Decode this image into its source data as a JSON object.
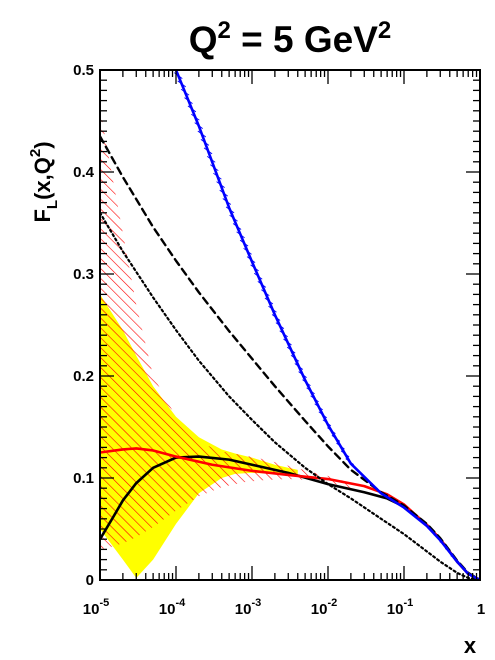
{
  "chart_data": {
    "type": "line",
    "title": {
      "base": "Q",
      "sup": "2",
      "mid": " = 5 GeV",
      "sup2": "2"
    },
    "xlabel": "x",
    "ylabel": {
      "a": "F",
      "sub": "L",
      "b": "(x,Q",
      "sup": "2",
      "c": ")"
    },
    "xscale": "log",
    "xlim": [
      1e-05,
      1
    ],
    "ylim": [
      0,
      0.5
    ],
    "x_ticks": [
      {
        "value": 1e-05,
        "base": "10",
        "exp": "-5"
      },
      {
        "value": 0.0001,
        "base": "10",
        "exp": "-4"
      },
      {
        "value": 0.001,
        "base": "10",
        "exp": "-3"
      },
      {
        "value": 0.01,
        "base": "10",
        "exp": "-2"
      },
      {
        "value": 0.1,
        "base": "10",
        "exp": "-1"
      },
      {
        "value": 1,
        "base": "1",
        "exp": ""
      }
    ],
    "y_ticks": [
      {
        "value": 0,
        "label": "0"
      },
      {
        "value": 0.1,
        "label": "0.1"
      },
      {
        "value": 0.2,
        "label": "0.2"
      },
      {
        "value": 0.3,
        "label": "0.3"
      },
      {
        "value": 0.4,
        "label": "0.4"
      },
      {
        "value": 0.5,
        "label": "0.5"
      }
    ],
    "grid": false,
    "bands": [
      {
        "id": "yellow",
        "color": "#ffff00",
        "style": "fill",
        "x": [
          1e-05,
          2e-05,
          3e-05,
          5e-05,
          0.0001,
          0.0002,
          0.0004,
          0.0006,
          0.001,
          0.002,
          0.004
        ],
        "upper": [
          0.28,
          0.245,
          0.22,
          0.19,
          0.16,
          0.14,
          0.128,
          0.124,
          0.12,
          0.113,
          0.108
        ],
        "lower": [
          0.05,
          0.02,
          0.002,
          0.02,
          0.055,
          0.085,
          0.1,
          0.104,
          0.105,
          0.104,
          0.102
        ]
      },
      {
        "id": "red-hatched",
        "color": "#ff0000",
        "style": "hatch",
        "x": [
          1e-05,
          1.5e-05,
          2e-05,
          3e-05,
          5e-05,
          0.0001,
          0.0002,
          0.0004,
          0.0008,
          0.0015,
          0.003,
          0.006,
          0.01,
          0.02
        ],
        "upper": [
          0.462,
          0.39,
          0.34,
          0.27,
          0.2,
          0.16,
          0.135,
          0.126,
          0.122,
          0.118,
          0.112,
          0.106,
          0.102,
          0.095
        ],
        "lower": [
          0.03,
          0.033,
          0.036,
          0.042,
          0.052,
          0.068,
          0.082,
          0.091,
          0.096,
          0.098,
          0.099,
          0.098,
          0.096,
          0.09
        ]
      }
    ],
    "series": [
      {
        "id": "black-solid",
        "color": "#000000",
        "dash": "none",
        "width": 2.6,
        "x": [
          1e-05,
          1.5e-05,
          2e-05,
          3e-05,
          5e-05,
          0.0001,
          0.0002,
          0.0005,
          0.001,
          0.003,
          0.01,
          0.03,
          0.06,
          0.1,
          0.2,
          0.3,
          0.5,
          0.7,
          1
        ],
        "y": [
          0.04,
          0.062,
          0.078,
          0.095,
          0.11,
          0.12,
          0.121,
          0.118,
          0.113,
          0.105,
          0.094,
          0.086,
          0.08,
          0.072,
          0.054,
          0.04,
          0.018,
          0.006,
          0.0
        ]
      },
      {
        "id": "red-solid",
        "color": "#ff0000",
        "dash": "none",
        "width": 2.6,
        "x": [
          1e-05,
          2e-05,
          3e-05,
          5e-05,
          0.0001,
          0.0003,
          0.001,
          0.003,
          0.01,
          0.03,
          0.06,
          0.1,
          0.2,
          0.3,
          0.5,
          0.7,
          1
        ],
        "y": [
          0.125,
          0.128,
          0.129,
          0.127,
          0.121,
          0.113,
          0.107,
          0.103,
          0.099,
          0.092,
          0.084,
          0.074,
          0.054,
          0.04,
          0.018,
          0.006,
          0.0
        ]
      },
      {
        "id": "black-dashed",
        "color": "#000000",
        "dash": "7,5",
        "width": 2.4,
        "x": [
          1e-05,
          2e-05,
          5e-05,
          0.0001,
          0.0002,
          0.0005,
          0.001,
          0.002,
          0.005,
          0.01,
          0.02,
          0.05,
          0.1,
          0.2,
          0.3,
          0.5,
          0.7,
          1
        ],
        "y": [
          0.435,
          0.395,
          0.346,
          0.313,
          0.282,
          0.244,
          0.217,
          0.19,
          0.156,
          0.131,
          0.108,
          0.086,
          0.073,
          0.055,
          0.041,
          0.019,
          0.007,
          0.0
        ]
      },
      {
        "id": "black-dotted",
        "color": "#000000",
        "dash": "2,3",
        "width": 2.2,
        "x": [
          1e-05,
          2e-05,
          5e-05,
          0.0001,
          0.0002,
          0.0005,
          0.001,
          0.002,
          0.005,
          0.01,
          0.02,
          0.05,
          0.1,
          0.2,
          0.3,
          0.5,
          0.7,
          1
        ],
        "y": [
          0.36,
          0.322,
          0.277,
          0.245,
          0.215,
          0.18,
          0.157,
          0.135,
          0.11,
          0.094,
          0.08,
          0.06,
          0.045,
          0.028,
          0.018,
          0.007,
          0.002,
          0.0
        ]
      },
      {
        "id": "blue-solid",
        "color": "#0000ff",
        "dash": "none",
        "width": 2.6,
        "hatched": true,
        "x": [
          0.0001,
          0.0002,
          0.0005,
          0.001,
          0.002,
          0.005,
          0.01,
          0.02,
          0.05,
          0.1,
          0.2,
          0.3,
          0.5,
          0.7,
          1
        ],
        "y": [
          0.5,
          0.445,
          0.365,
          0.312,
          0.26,
          0.196,
          0.152,
          0.114,
          0.085,
          0.071,
          0.053,
          0.039,
          0.018,
          0.006,
          0.0
        ]
      }
    ]
  }
}
